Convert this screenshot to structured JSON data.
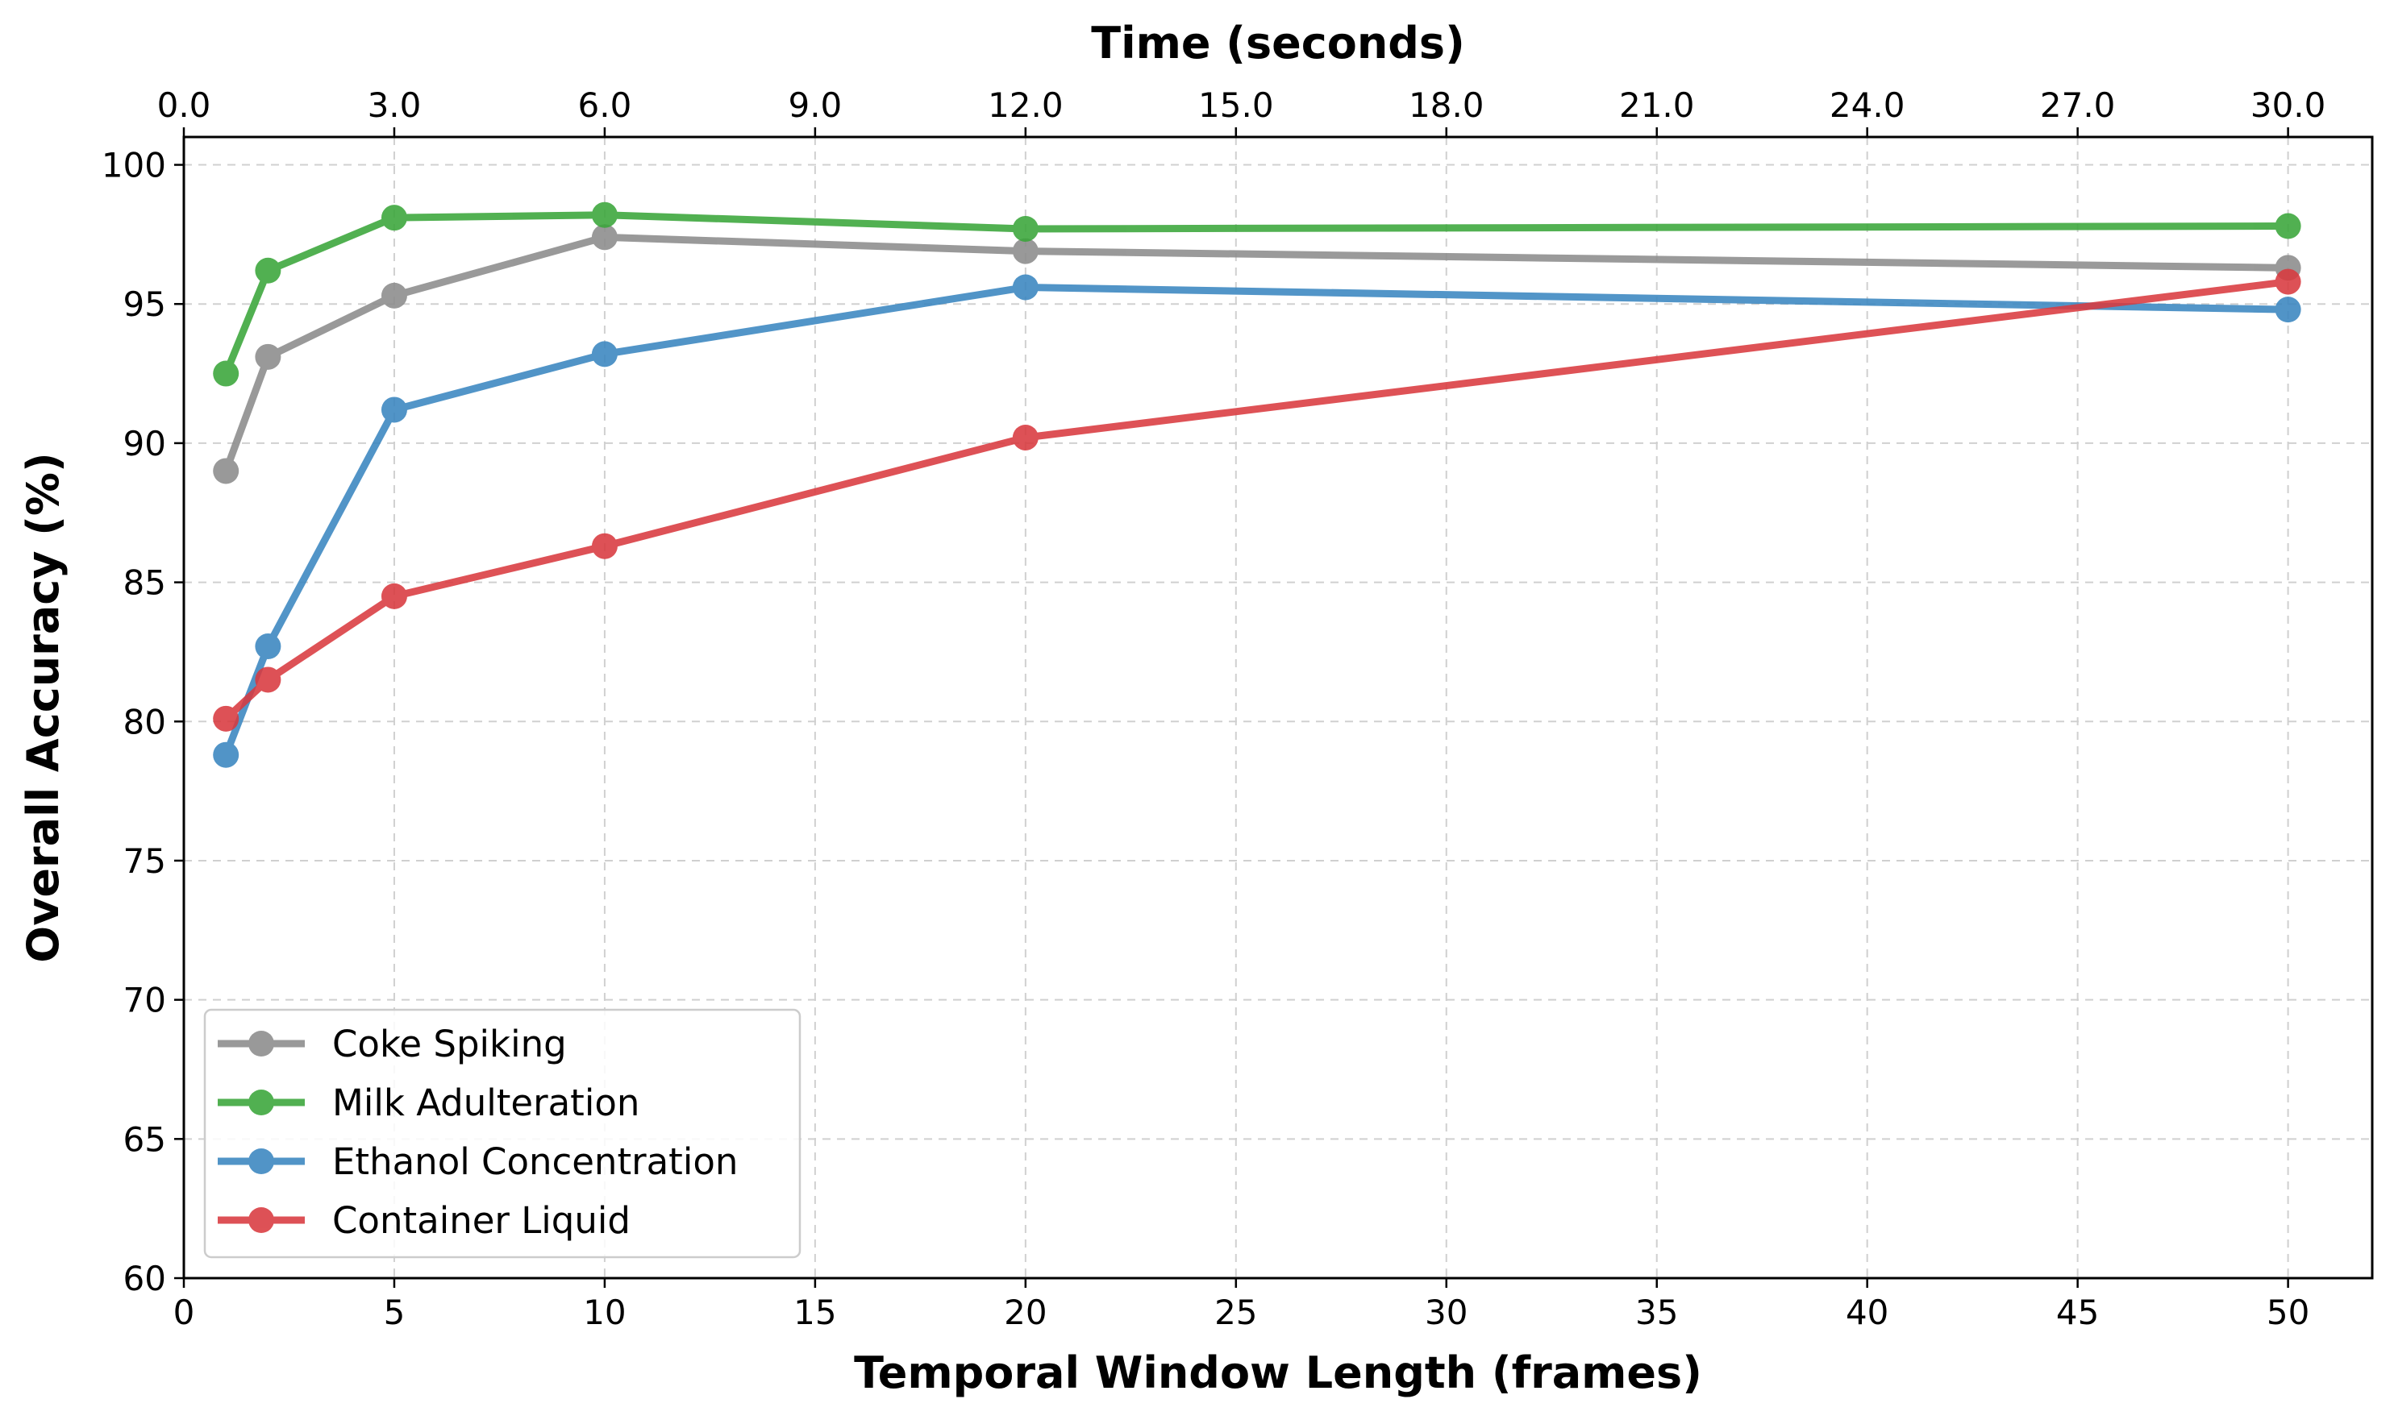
{
  "chart_data": {
    "type": "line",
    "xlabel": "Temporal Window Length (frames)",
    "x2label": "Time (seconds)",
    "ylabel": "Overall Accuracy (%)",
    "xlim": [
      0,
      52
    ],
    "ylim": [
      60,
      101
    ],
    "xticks": [
      0,
      5,
      10,
      15,
      20,
      25,
      30,
      35,
      40,
      45,
      50
    ],
    "xtick_labels": [
      "0",
      "5",
      "10",
      "15",
      "20",
      "25",
      "30",
      "35",
      "40",
      "45",
      "50"
    ],
    "yticks": [
      60,
      65,
      70,
      75,
      80,
      85,
      90,
      95,
      100
    ],
    "ytick_labels": [
      "60",
      "65",
      "70",
      "75",
      "80",
      "85",
      "90",
      "95",
      "100"
    ],
    "x2ticks_frames": [
      0,
      5,
      10,
      15,
      20,
      25,
      30,
      35,
      40,
      45,
      50
    ],
    "x2tick_labels": [
      "0.0",
      "3.0",
      "6.0",
      "9.0",
      "12.0",
      "15.0",
      "18.0",
      "21.0",
      "24.0",
      "27.0",
      "30.0"
    ],
    "grid": true,
    "legend_position": "bottom-left",
    "x": [
      1,
      2,
      5,
      10,
      20,
      50
    ],
    "series": [
      {
        "name": "Coke Spiking",
        "color": "#8c8c8c",
        "values": [
          89.0,
          93.1,
          95.3,
          97.4,
          96.9,
          96.3
        ]
      },
      {
        "name": "Milk Adulteration",
        "color": "#3aa63a",
        "values": [
          92.5,
          96.2,
          98.1,
          98.2,
          97.7,
          97.8
        ]
      },
      {
        "name": "Ethanol Concentration",
        "color": "#3a86c0",
        "values": [
          78.8,
          82.7,
          91.2,
          93.2,
          95.6,
          94.8
        ]
      },
      {
        "name": "Container Liquid",
        "color": "#d93a3f",
        "values": [
          80.1,
          81.5,
          84.5,
          86.3,
          90.2,
          95.8
        ]
      }
    ]
  }
}
